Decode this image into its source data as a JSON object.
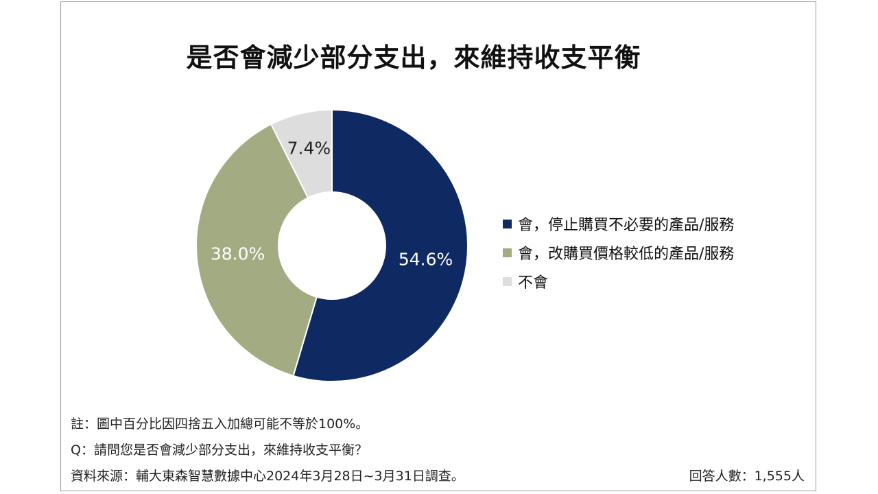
{
  "chart_data": {
    "type": "pie",
    "title": "是否會減少部分支出，來維持收支平衡",
    "donut": true,
    "legend_position": "right",
    "slices": [
      {
        "label": "會，停止購買不必要的產品/服務",
        "value": 54.6,
        "display": "54.6%",
        "color": "#0f2a62",
        "label_color": "#ffffff"
      },
      {
        "label": "會，改購買價格較低的產品/服務",
        "value": 38.0,
        "display": "38.0%",
        "color": "#a3ab83",
        "label_color": "#ffffff"
      },
      {
        "label": "不會",
        "value": 7.4,
        "display": "7.4%",
        "color": "#dddddd",
        "label_color": "#222222"
      }
    ]
  },
  "footer": {
    "note": "註：圖中百分比因四捨五入加總可能不等於100%。",
    "question": "Q：請問您是否會減少部分支出，來維持收支平衡？",
    "source": "資料來源：輔大東森智慧數據中心2024年3月28日~3月31日調查。",
    "respondents": "回答人數：1,555人"
  }
}
